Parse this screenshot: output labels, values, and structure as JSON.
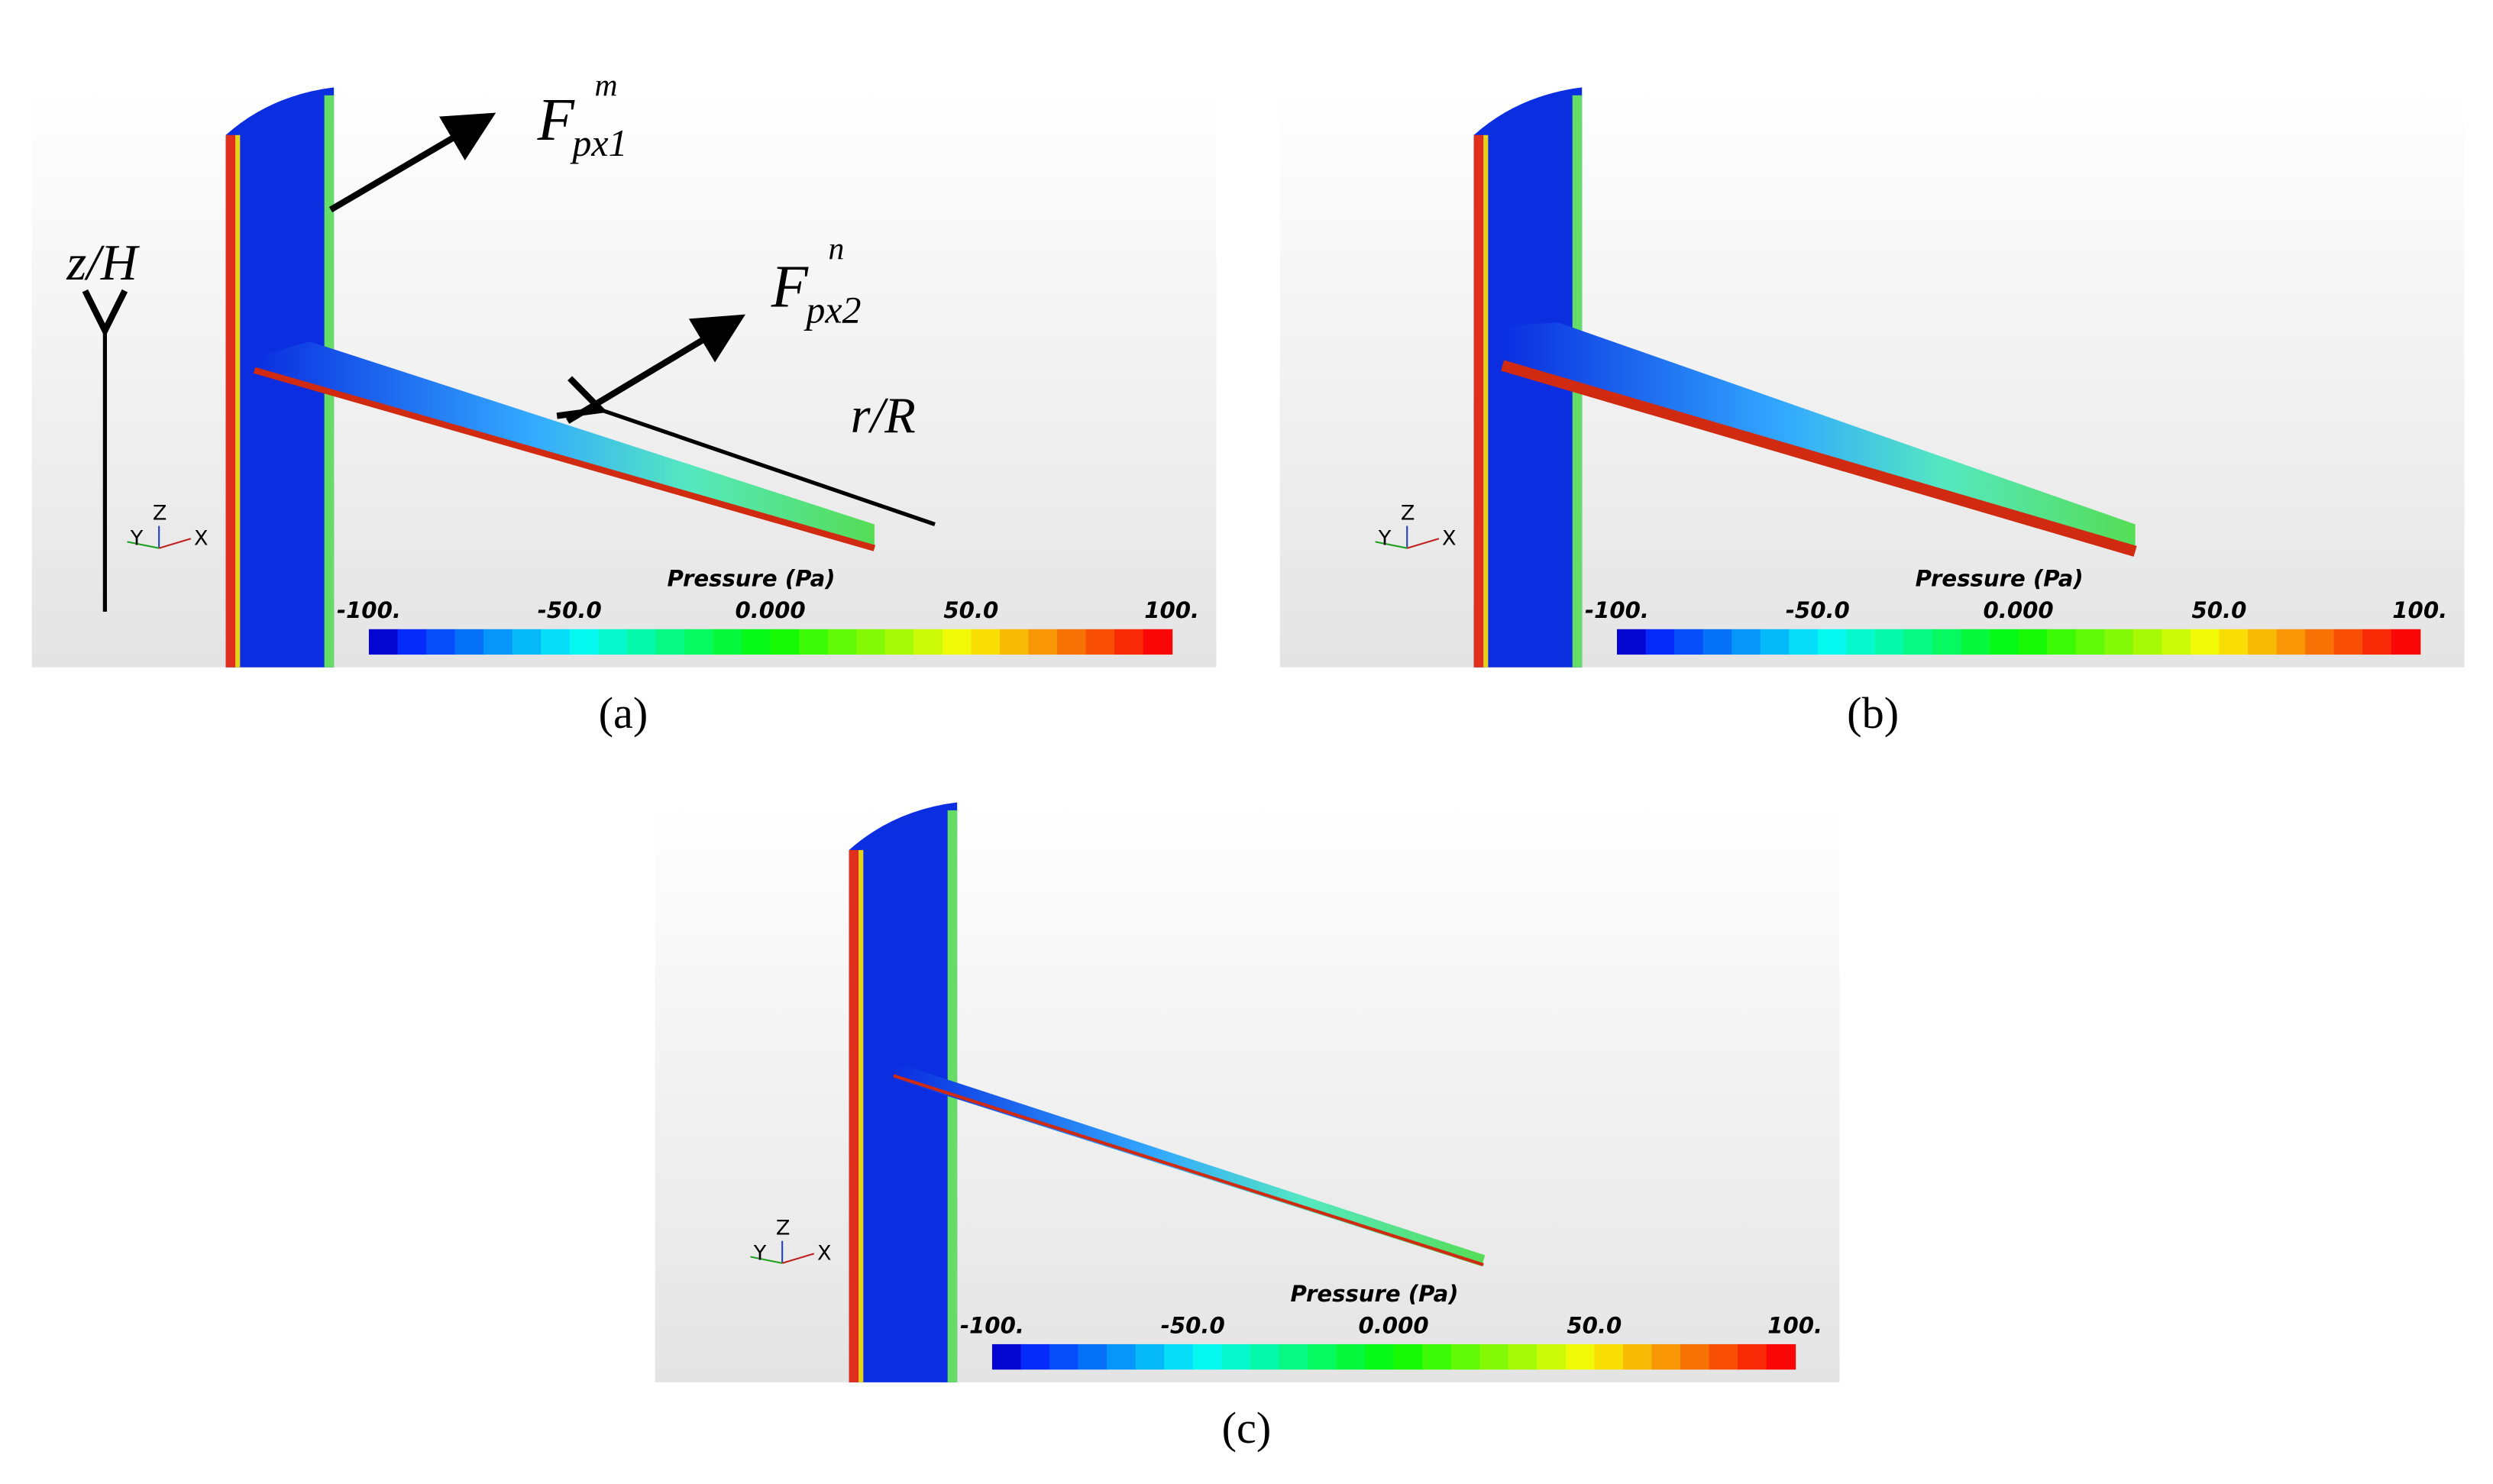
{
  "panels": [
    {
      "label": "(a)",
      "colorbar": {
        "title": "Pressure (Pa)",
        "ticks": [
          {
            "value": -100,
            "label": "-100."
          },
          {
            "value": -50,
            "label": "-50.0"
          },
          {
            "value": 0,
            "label": "0.000"
          },
          {
            "value": 50,
            "label": "50.0"
          },
          {
            "value": 100,
            "label": "100."
          }
        ]
      },
      "triad": {
        "x": "X",
        "y": "Y",
        "z": "Z"
      }
    },
    {
      "label": "(b)",
      "colorbar": {
        "title": "Pressure (Pa)",
        "ticks": [
          {
            "value": -100,
            "label": "-100."
          },
          {
            "value": -50,
            "label": "-50.0"
          },
          {
            "value": 0,
            "label": "0.000"
          },
          {
            "value": 50,
            "label": "50.0"
          },
          {
            "value": 100,
            "label": "100."
          }
        ]
      },
      "triad": {
        "x": "X",
        "y": "Y",
        "z": "Z"
      }
    },
    {
      "label": "(c)",
      "colorbar": {
        "title": "Pressure (Pa)",
        "ticks": [
          {
            "value": -100,
            "label": "-100."
          },
          {
            "value": -50,
            "label": "-50.0"
          },
          {
            "value": 0,
            "label": "0.000"
          },
          {
            "value": 50,
            "label": "50.0"
          },
          {
            "value": 100,
            "label": "100."
          }
        ]
      },
      "triad": {
        "x": "X",
        "y": "Y",
        "z": "Z"
      }
    }
  ],
  "annotations": {
    "height_axis": "z/H",
    "radius_axis": "r/R",
    "force_1": {
      "symbol": "F",
      "subscript": "px1",
      "superscript": "m"
    },
    "force_2": {
      "symbol": "F",
      "subscript": "px2",
      "superscript": "n"
    }
  }
}
